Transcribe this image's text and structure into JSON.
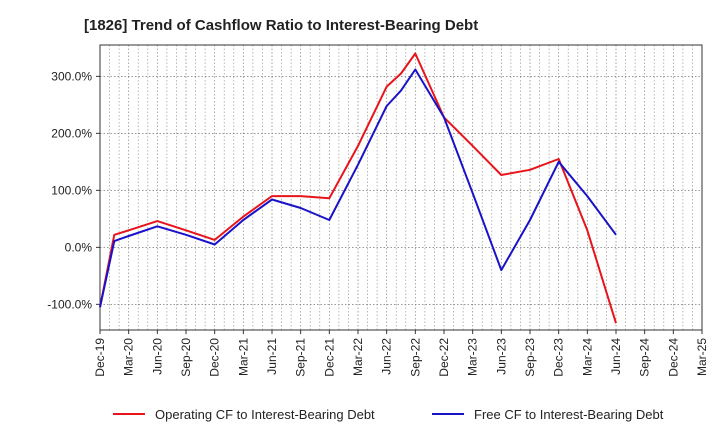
{
  "chart_data": {
    "type": "line",
    "title": "[1826]  Trend of Cashflow Ratio to Interest-Bearing Debt",
    "xlabel": "",
    "ylabel": "",
    "categories": [
      "Dec-19",
      "Mar-20",
      "Jun-20",
      "Sep-20",
      "Dec-20",
      "Mar-21",
      "Jun-21",
      "Sep-21",
      "Dec-21",
      "Mar-22",
      "Jun-22",
      "Sep-22",
      "Dec-22",
      "Mar-23",
      "Jun-23",
      "Sep-23",
      "Dec-23",
      "Mar-24",
      "Jun-24",
      "Sep-24",
      "Dec-24",
      "Mar-25"
    ],
    "x_ticks_count": 22,
    "y_ticks": [
      -100,
      0,
      100,
      200,
      300
    ],
    "y_tick_labels": [
      "-100.0%",
      "0.0%",
      "100.0%",
      "200.0%",
      "300.0%"
    ],
    "ylim": [
      -145,
      355
    ],
    "grid": true,
    "legend_position": "bottom",
    "series": [
      {
        "name": "Operating CF to Interest-Bearing Debt",
        "color": "#e8141b",
        "points": [
          [
            0,
            -105
          ],
          [
            0.5,
            22
          ],
          [
            1,
            30
          ],
          [
            2,
            46
          ],
          [
            3,
            30
          ],
          [
            4,
            13
          ],
          [
            5,
            54
          ],
          [
            6,
            90
          ],
          [
            7,
            90
          ],
          [
            8,
            86
          ],
          [
            9,
            178
          ],
          [
            10,
            282
          ],
          [
            10.5,
            305
          ],
          [
            11,
            340
          ],
          [
            12,
            228
          ],
          [
            13,
            178
          ],
          [
            14,
            127
          ],
          [
            15,
            136
          ],
          [
            16,
            155
          ],
          [
            17,
            30
          ],
          [
            18,
            -133
          ]
        ]
      },
      {
        "name": "Free CF to Interest-Bearing Debt",
        "color": "#1a12c8",
        "points": [
          [
            0,
            -105
          ],
          [
            0.5,
            11
          ],
          [
            1,
            20
          ],
          [
            2,
            37
          ],
          [
            3,
            22
          ],
          [
            4,
            5
          ],
          [
            5,
            48
          ],
          [
            6,
            84
          ],
          [
            7,
            69
          ],
          [
            8,
            48
          ],
          [
            9,
            145
          ],
          [
            10,
            248
          ],
          [
            10.5,
            275
          ],
          [
            11,
            312
          ],
          [
            12,
            228
          ],
          [
            13,
            95
          ],
          [
            14,
            -40
          ],
          [
            15,
            48
          ],
          [
            16,
            150
          ],
          [
            17,
            90
          ],
          [
            18,
            22
          ]
        ]
      }
    ]
  }
}
